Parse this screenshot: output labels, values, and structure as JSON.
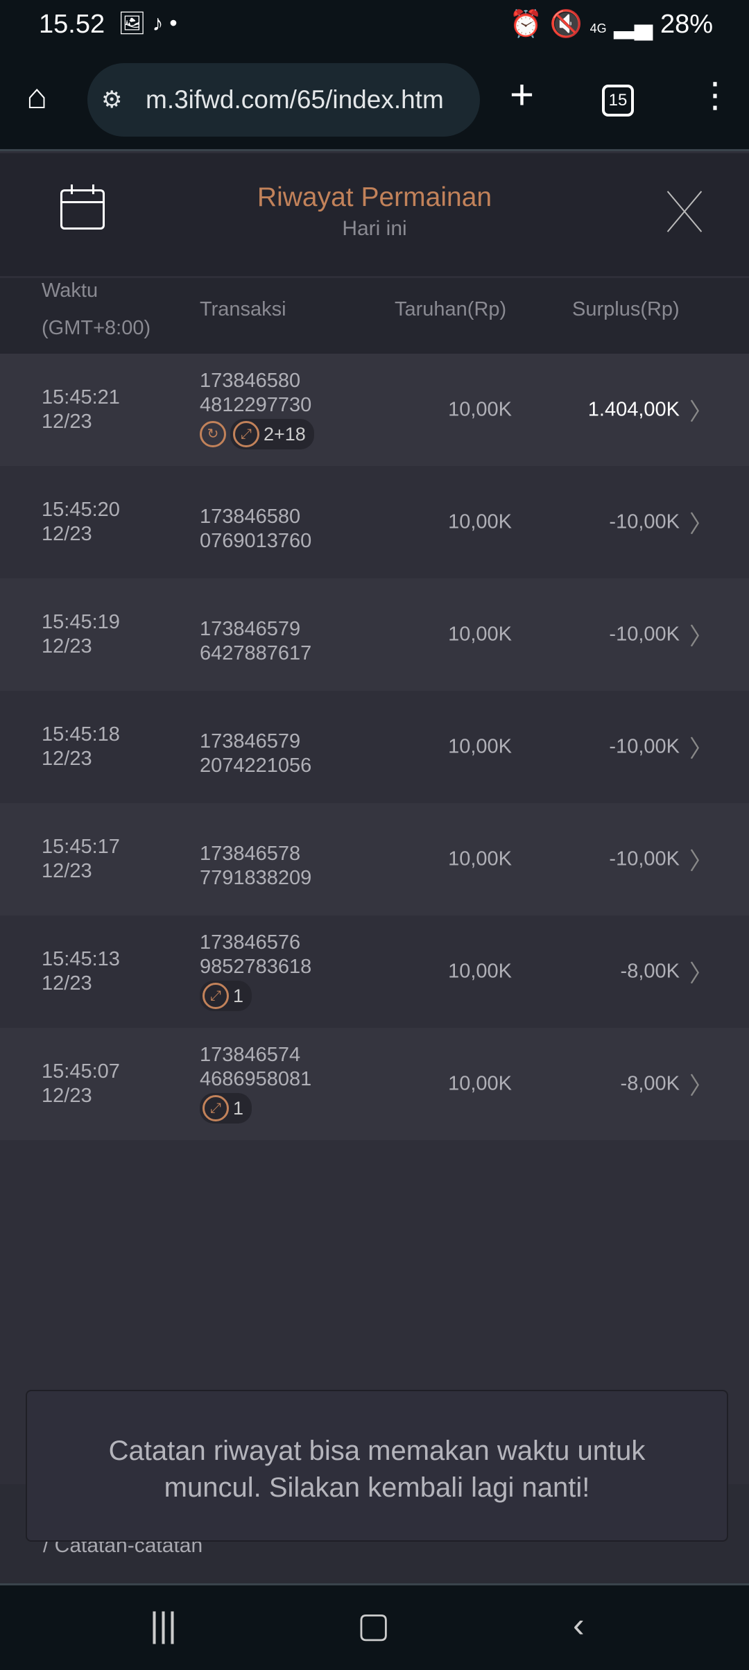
{
  "status_bar": {
    "time": "15.52",
    "battery": "28%",
    "network": "4G"
  },
  "browser": {
    "url": "m.3ifwd.com/65/index.htm",
    "tab_count": "15"
  },
  "header": {
    "title": "Riwayat Permainan",
    "subtitle": "Hari ini"
  },
  "columns": {
    "time": "Waktu",
    "time_zone": "(GMT+8:00)",
    "transaction": "Transaksi",
    "bet": "Taruhan(Rp)",
    "surplus": "Surplus(Rp)"
  },
  "rows": [
    {
      "time": "15:45:21",
      "date": "12/23",
      "id1": "173846580",
      "id2": "4812297730",
      "bet": "10,00K",
      "surplus": "1.404,00K",
      "spin_icon": true,
      "badge": "2+18"
    },
    {
      "time": "15:45:20",
      "date": "12/23",
      "id1": "173846580",
      "id2": "0769013760",
      "bet": "10,00K",
      "surplus": "-10,00K"
    },
    {
      "time": "15:45:19",
      "date": "12/23",
      "id1": "173846579",
      "id2": "6427887617",
      "bet": "10,00K",
      "surplus": "-10,00K"
    },
    {
      "time": "15:45:18",
      "date": "12/23",
      "id1": "173846579",
      "id2": "2074221056",
      "bet": "10,00K",
      "surplus": "-10,00K"
    },
    {
      "time": "15:45:17",
      "date": "12/23",
      "id1": "173846578",
      "id2": "7791838209",
      "bet": "10,00K",
      "surplus": "-10,00K"
    },
    {
      "time": "15:45:13",
      "date": "12/23",
      "id1": "173846576",
      "id2": "9852783618",
      "bet": "10,00K",
      "surplus": "-8,00K",
      "badge": "1"
    },
    {
      "time": "15:45:07",
      "date": "12/23",
      "id1": "173846574",
      "id2": "4686958081",
      "bet": "10,00K",
      "surplus": "-8,00K",
      "badge": "1"
    }
  ],
  "toast": "Catatan riwayat bisa memakan waktu untuk muncul. Silakan kembali lagi nanti!",
  "footer": {
    "label": "/ Catatan-catatan"
  },
  "colors": {
    "accent": "#c2825a",
    "background": "#2f2f39"
  }
}
